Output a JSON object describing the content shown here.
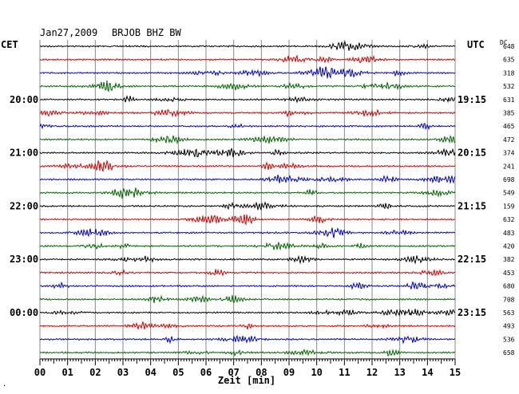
{
  "header": {
    "date": "Jan27,2009",
    "station": "BRJOB BHZ BW",
    "left_tz": "CET",
    "right_tz": "UTC",
    "dc_label": "DC",
    "xlabel": "Zeit [min]",
    "corner_mark": "."
  },
  "chart_data": {
    "type": "line",
    "title": "Jan27,2009 BRJOB BHZ BW",
    "xlabel": "Zeit [min]",
    "ylabel": "",
    "xlim": [
      0,
      15
    ],
    "x_ticks": [
      "00",
      "01",
      "02",
      "03",
      "04",
      "05",
      "06",
      "07",
      "08",
      "09",
      "10",
      "11",
      "12",
      "13",
      "14",
      "15"
    ],
    "grid": true,
    "trace_colors": [
      "#000000",
      "#d40000",
      "#0000c8",
      "#006400"
    ],
    "left_time_labels": [
      {
        "row": 4,
        "text": "20:00"
      },
      {
        "row": 8,
        "text": "21:00"
      },
      {
        "row": 12,
        "text": "22:00"
      },
      {
        "row": 16,
        "text": "23:00"
      },
      {
        "row": 20,
        "text": "00:00"
      }
    ],
    "right_time_labels": [
      {
        "row": 4,
        "text": "19:15"
      },
      {
        "row": 8,
        "text": "20:15"
      },
      {
        "row": 12,
        "text": "21:15"
      },
      {
        "row": 16,
        "text": "22:15"
      },
      {
        "row": 20,
        "text": "23:15"
      }
    ],
    "dc_offsets": [
      "648",
      "635",
      "318",
      "532",
      "631",
      "385",
      "465",
      "472",
      "374",
      "241",
      "698",
      "549",
      "159",
      "632",
      "483",
      "420",
      "382",
      "453",
      "680",
      "708",
      "563",
      "493",
      "536",
      "658"
    ]
  }
}
